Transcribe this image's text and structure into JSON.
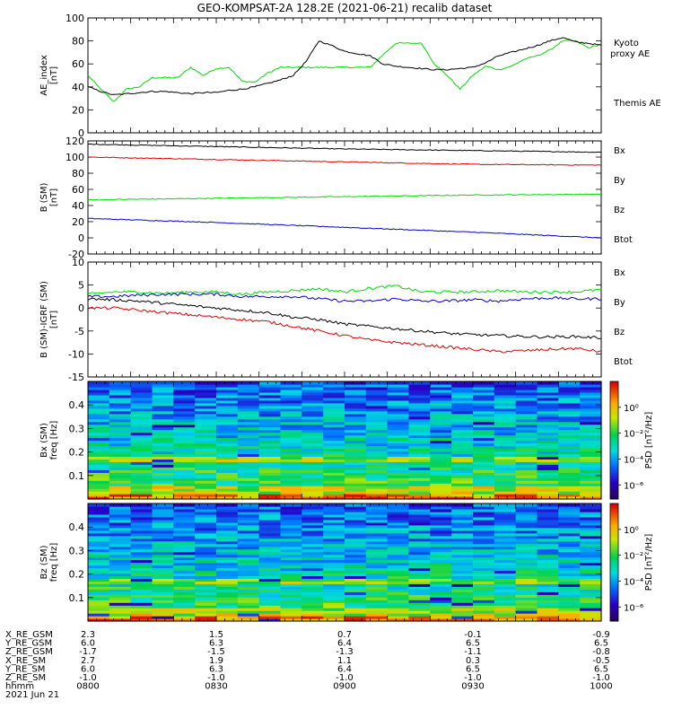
{
  "title": "GEO-KOMPSAT-2A 128.2E (2021-06-21) recalib dataset",
  "colors": {
    "black": "#000000",
    "green": "#00dd00",
    "blue": "#0000cc",
    "red": "#dd0000"
  },
  "chart_data": [
    {
      "type": "line",
      "ylabel": "AE_index\n[nT]",
      "ylim": [
        0,
        100
      ],
      "yticks": [
        0,
        20,
        40,
        60,
        80,
        100
      ],
      "x_range": [
        "08:00",
        "10:00"
      ],
      "series": [
        {
          "name": "Kyoto proxy AE",
          "color": "#00dd00",
          "x": [
            0,
            3,
            6,
            9,
            12,
            15,
            18,
            21,
            24,
            27,
            30,
            33,
            36,
            39,
            42,
            45,
            48,
            51,
            54,
            57,
            60,
            63,
            66,
            69,
            72,
            75,
            78,
            81,
            84,
            87,
            90,
            93,
            96,
            99,
            102,
            105,
            108,
            111,
            114,
            117,
            120
          ],
          "values": [
            50,
            38,
            27,
            38,
            40,
            48,
            48,
            48,
            57,
            50,
            56,
            57,
            45,
            44,
            52,
            57,
            57,
            57,
            57,
            57,
            57,
            57,
            57,
            68,
            78,
            78,
            78,
            60,
            50,
            38,
            50,
            58,
            55,
            58,
            64,
            67,
            72,
            80,
            80,
            74,
            77
          ]
        },
        {
          "name": "Themis AE",
          "color": "#000000",
          "x": [
            0,
            3,
            6,
            9,
            12,
            15,
            18,
            21,
            24,
            27,
            30,
            33,
            36,
            39,
            42,
            45,
            48,
            51,
            54,
            57,
            60,
            63,
            66,
            69,
            72,
            75,
            78,
            81,
            84,
            87,
            90,
            93,
            96,
            99,
            102,
            105,
            108,
            111,
            114,
            117,
            120
          ],
          "values": [
            40,
            36,
            33,
            34,
            35,
            36,
            36,
            35,
            34,
            35,
            35,
            37,
            38,
            40,
            43,
            46,
            50,
            62,
            80,
            76,
            71,
            69,
            67,
            60,
            58,
            57,
            56,
            55,
            55,
            56,
            57,
            61,
            67,
            70,
            73,
            76,
            80,
            83,
            79,
            78,
            76
          ]
        }
      ],
      "labels": [
        {
          "text": "Kyoto\nproxy AE",
          "color": "#00dd00"
        },
        {
          "text": "Themis AE",
          "color": "#000000"
        }
      ]
    },
    {
      "type": "line",
      "ylabel": "B (SM)\n[nT]",
      "ylim": [
        -20,
        120
      ],
      "yticks": [
        -20,
        0,
        20,
        40,
        60,
        80,
        100,
        120
      ],
      "x_range": [
        "08:00",
        "10:00"
      ],
      "series": [
        {
          "name": "Btot",
          "color": "#000000",
          "x": [
            0,
            30,
            60,
            90,
            120
          ],
          "values": [
            116,
            113,
            110,
            108,
            106
          ]
        },
        {
          "name": "Bx",
          "color": "#dd0000",
          "x": [
            0,
            30,
            60,
            90,
            120
          ],
          "values": [
            100,
            97,
            94,
            91,
            90
          ]
        },
        {
          "name": "By",
          "color": "#00dd00",
          "x": [
            0,
            30,
            60,
            90,
            120
          ],
          "values": [
            47,
            49,
            51,
            53,
            54
          ]
        },
        {
          "name": "Bz",
          "color": "#0000cc",
          "x": [
            0,
            30,
            60,
            90,
            120
          ],
          "values": [
            24,
            19,
            13,
            7,
            0
          ]
        }
      ],
      "labels": [
        {
          "text": "Bx",
          "color": "#0000cc"
        },
        {
          "text": "By",
          "color": "#00dd00"
        },
        {
          "text": "Bz",
          "color": "#dd0000"
        },
        {
          "text": "Btot",
          "color": "#000000"
        }
      ]
    },
    {
      "type": "line",
      "ylabel": "B (SM)-IGRF (SM)\n[nT]",
      "ylim": [
        -15,
        10
      ],
      "yticks": [
        -15,
        -10,
        -5,
        0,
        5,
        10
      ],
      "x_range": [
        "08:00",
        "10:00"
      ],
      "series": [
        {
          "name": "By",
          "color": "#00dd00",
          "x": [
            0,
            6,
            12,
            18,
            24,
            30,
            36,
            42,
            48,
            54,
            60,
            66,
            72,
            78,
            84,
            90,
            96,
            102,
            108,
            114,
            120
          ],
          "values": [
            3,
            3.5,
            3.5,
            3.2,
            3.5,
            3.5,
            3.0,
            3.5,
            3.8,
            4.2,
            3.5,
            4.3,
            4.8,
            3.5,
            3.5,
            3.5,
            3.8,
            3.5,
            3.5,
            3.5,
            4.0
          ]
        },
        {
          "name": "Bz",
          "color": "#0000cc",
          "x": [
            0,
            6,
            12,
            18,
            24,
            30,
            36,
            42,
            48,
            54,
            60,
            66,
            72,
            78,
            84,
            90,
            96,
            102,
            108,
            114,
            120
          ],
          "values": [
            2.5,
            2.5,
            2.8,
            3.0,
            3.0,
            3.0,
            2.5,
            2.5,
            2.5,
            2.0,
            1.5,
            1.5,
            2.0,
            1.5,
            1.5,
            1.8,
            1.5,
            2.0,
            2.2,
            2.0,
            2.0
          ]
        },
        {
          "name": "Btot",
          "color": "#000000",
          "x": [
            0,
            6,
            12,
            18,
            24,
            30,
            36,
            42,
            48,
            54,
            60,
            66,
            72,
            78,
            84,
            90,
            96,
            102,
            108,
            114,
            120
          ],
          "values": [
            2.0,
            1.8,
            1.5,
            1.0,
            0.5,
            0.0,
            -0.5,
            -1.0,
            -2.0,
            -2.5,
            -3.5,
            -4.0,
            -4.5,
            -5.0,
            -5.5,
            -5.8,
            -6.0,
            -6.2,
            -6.3,
            -6.2,
            -6.5
          ]
        },
        {
          "name": "Bx",
          "color": "#dd0000",
          "x": [
            0,
            6,
            12,
            18,
            24,
            30,
            36,
            42,
            48,
            54,
            60,
            66,
            72,
            78,
            84,
            90,
            96,
            102,
            108,
            114,
            120
          ],
          "values": [
            0.0,
            0.0,
            -0.5,
            -1.0,
            -1.5,
            -2.0,
            -2.5,
            -3.0,
            -4.0,
            -5.0,
            -6.0,
            -7.0,
            -7.5,
            -8.0,
            -8.5,
            -9.0,
            -9.5,
            -9.3,
            -9.0,
            -8.8,
            -9.5
          ]
        }
      ],
      "labels": [
        {
          "text": "Bx",
          "color": "#0000cc"
        },
        {
          "text": "By",
          "color": "#00dd00"
        },
        {
          "text": "Bz",
          "color": "#dd0000"
        },
        {
          "text": "Btot",
          "color": "#000000"
        }
      ]
    },
    {
      "type": "heatmap",
      "ylabel": "Bx (SM)\nfreq [Hz]",
      "ylim": [
        0,
        0.5
      ],
      "yticks": [
        0.1,
        0.2,
        0.3,
        0.4
      ],
      "colorbar_label": "PSD [nT²/Hz]",
      "colorbar_ticks": [
        "10⁰",
        "10⁻²",
        "10⁻⁴",
        "10⁻⁶"
      ],
      "colorbar_ticks_log": [
        0,
        -2,
        -4,
        -6
      ]
    },
    {
      "type": "heatmap",
      "ylabel": "Bz (SM)\nfreq [Hz]",
      "ylim": [
        0,
        0.5
      ],
      "yticks": [
        0.1,
        0.2,
        0.3,
        0.4
      ],
      "colorbar_label": "PSD [nT²/Hz]",
      "colorbar_ticks": [
        "10⁰",
        "10⁻²",
        "10⁻⁴",
        "10⁻⁶"
      ],
      "colorbar_ticks_log": [
        0,
        -2,
        -4,
        -6
      ]
    }
  ],
  "x_table": {
    "rows": [
      {
        "label": "X_RE_GSM",
        "values": [
          "2.3",
          "1.5",
          "0.7",
          "-0.1",
          "-0.9"
        ]
      },
      {
        "label": "Y_RE_GSM",
        "values": [
          "6.0",
          "6.3",
          "6.4",
          "6.5",
          "6.5"
        ]
      },
      {
        "label": "Z_RE_GSM",
        "values": [
          "-1.7",
          "-1.5",
          "-1.3",
          "-1.1",
          "-0.8"
        ]
      },
      {
        "label": "X_RE_SM",
        "values": [
          "2.7",
          "1.9",
          "1.1",
          "0.3",
          "-0.5"
        ]
      },
      {
        "label": "Y_RE_SM",
        "values": [
          "6.0",
          "6.3",
          "6.4",
          "6.5",
          "6.5"
        ]
      },
      {
        "label": "Z_RE_SM",
        "values": [
          "-1.0",
          "-1.0",
          "-1.0",
          "-1.0",
          "-1.0"
        ]
      },
      {
        "label": "hhmm",
        "values": [
          "0800",
          "0830",
          "0900",
          "0930",
          "1000"
        ]
      }
    ],
    "date": "2021 Jun 21"
  }
}
